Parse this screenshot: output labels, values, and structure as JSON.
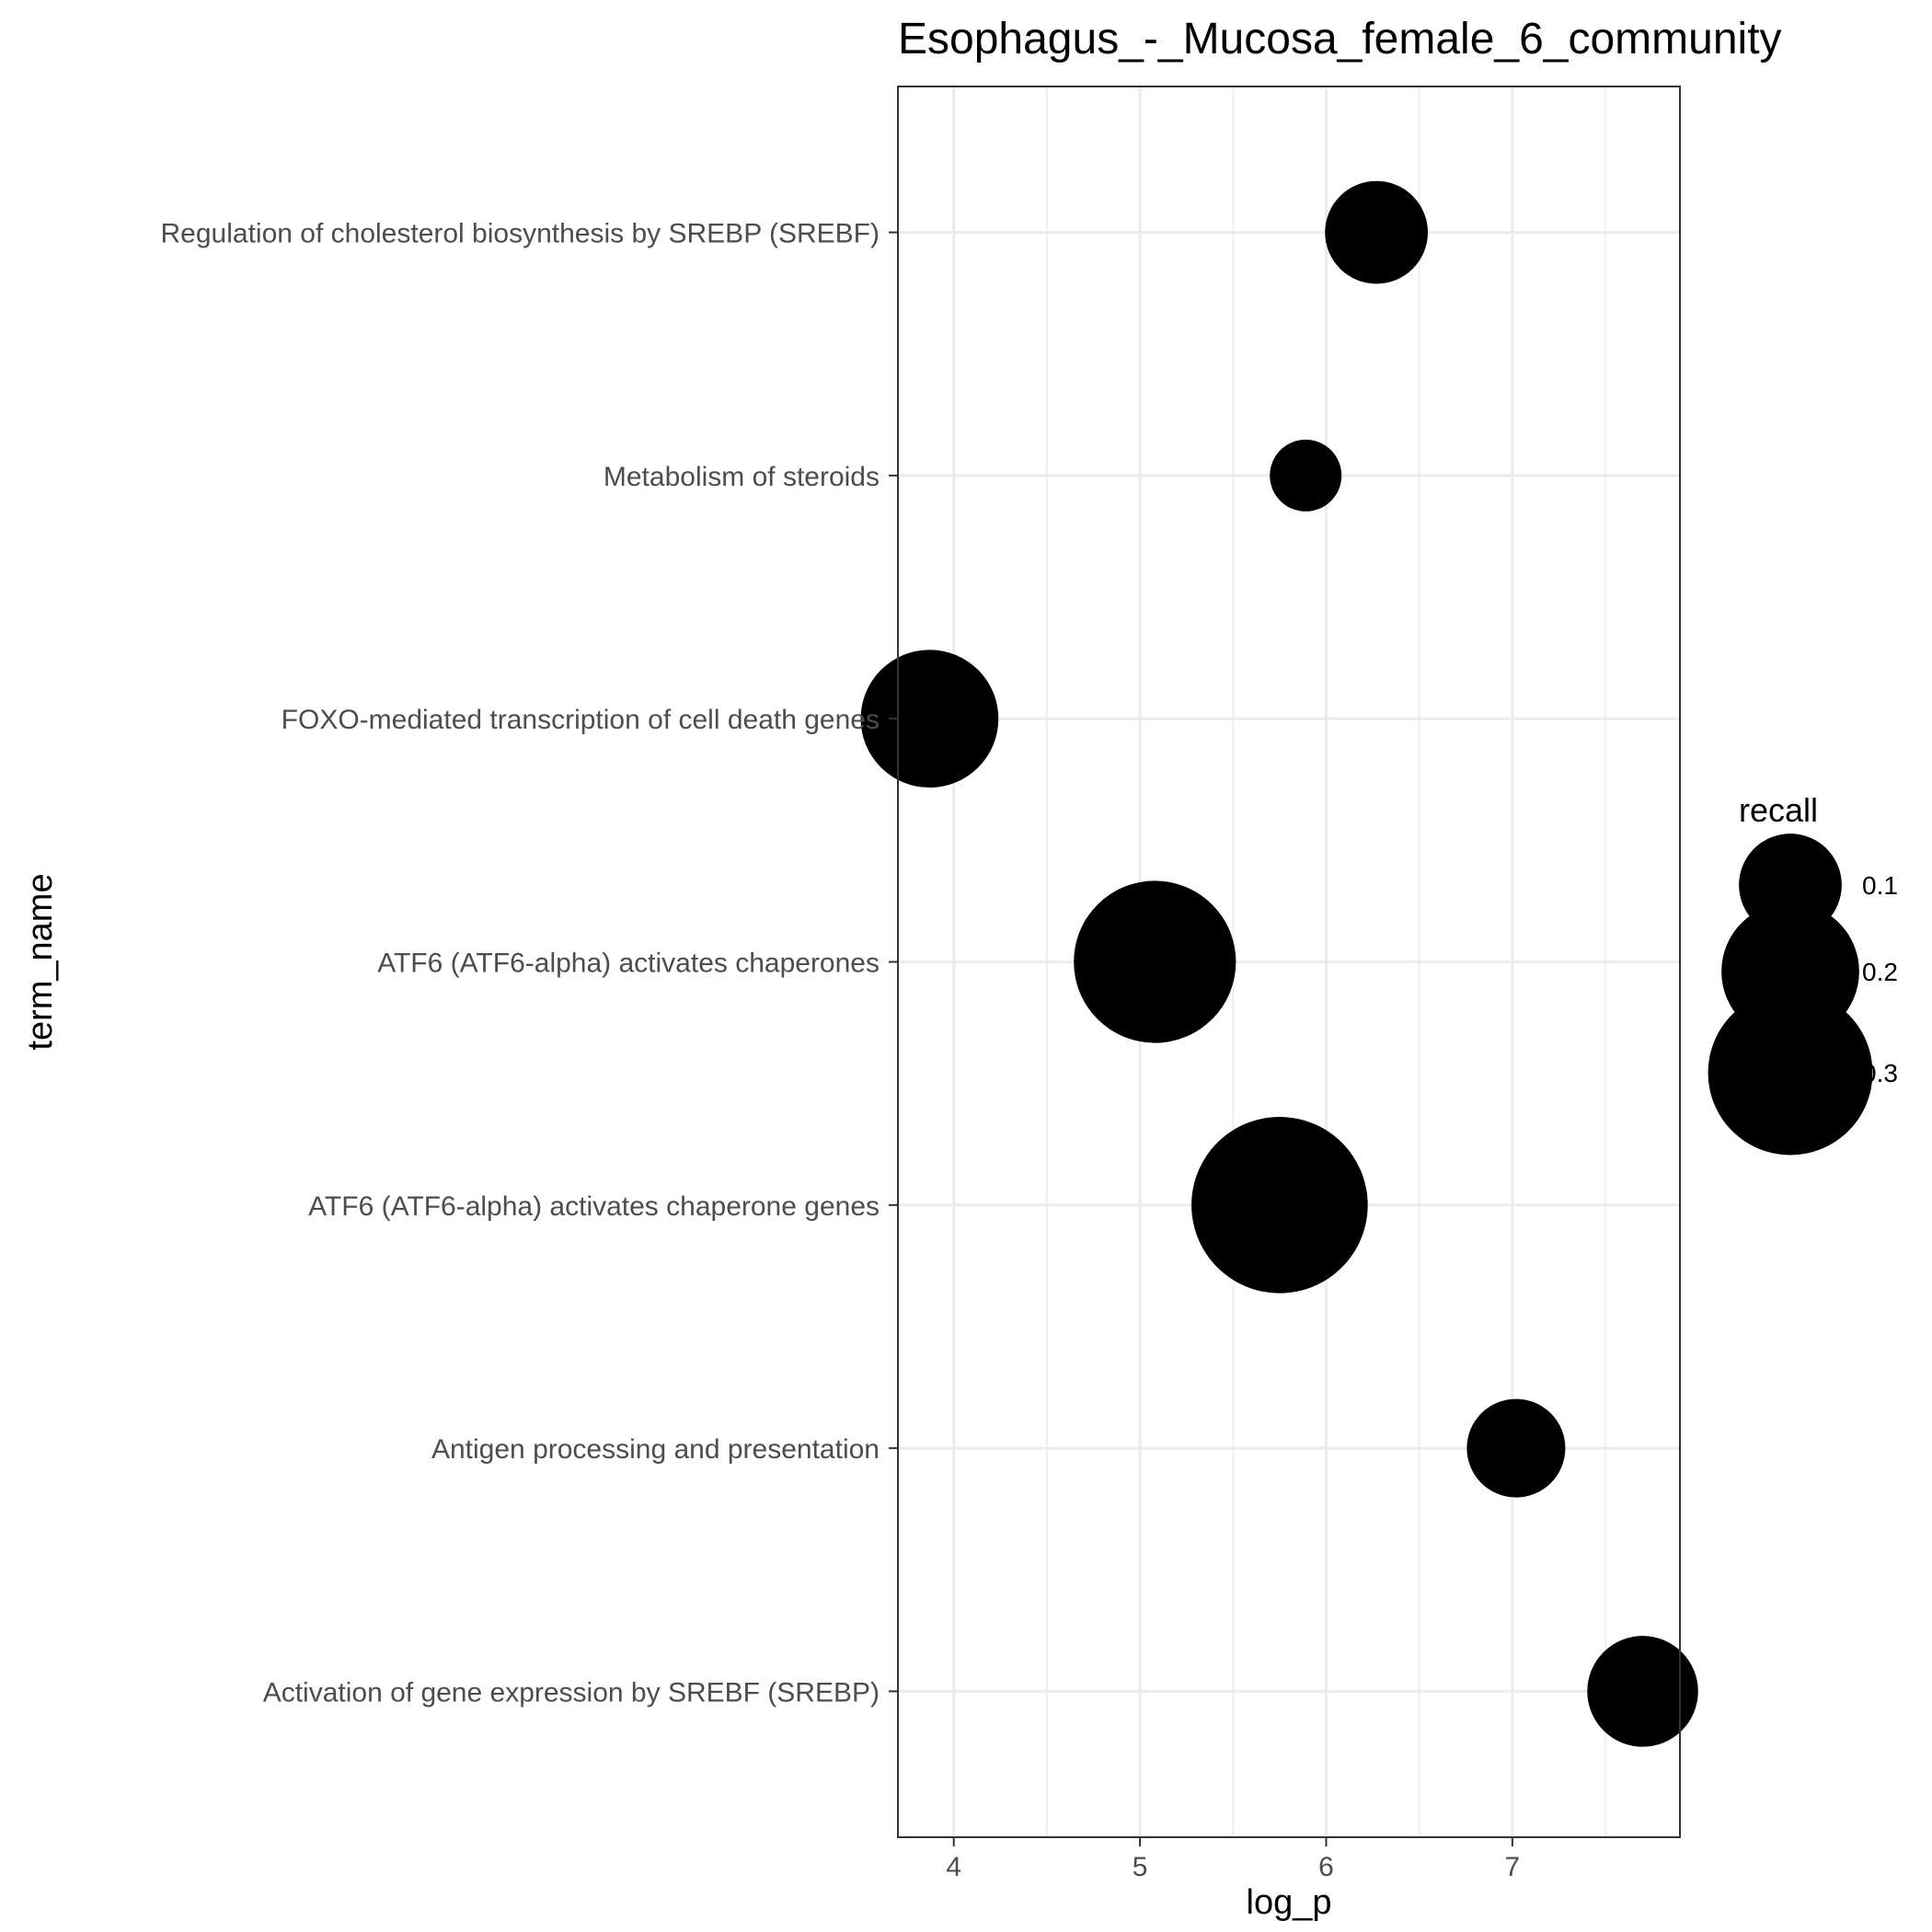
{
  "chart_data": {
    "type": "scatter",
    "title": "Esophagus_-_Mucosa_female_6_community",
    "xlabel": "log_p",
    "ylabel": "term_name",
    "xlim": [
      3.7,
      7.9
    ],
    "x_ticks": [
      4,
      5,
      6,
      7
    ],
    "grid": true,
    "categories": [
      "Regulation of cholesterol biosynthesis by SREBP (SREBF)",
      "Metabolism of steroids",
      "FOXO-mediated transcription of cell death genes",
      "ATF6 (ATF6-alpha) activates chaperones",
      "ATF6 (ATF6-alpha) activates chaperone genes",
      "Antigen processing and presentation",
      "Activation of gene expression by SREBF (SREBP)"
    ],
    "points": [
      {
        "term_name": "Regulation of cholesterol biosynthesis by SREBP (SREBF)",
        "log_p": 6.27,
        "recall": 0.1
      },
      {
        "term_name": "Metabolism of steroids",
        "log_p": 5.89,
        "recall": 0.04
      },
      {
        "term_name": "FOXO-mediated transcription of cell death genes",
        "log_p": 3.87,
        "recall": 0.2
      },
      {
        "term_name": "ATF6 (ATF6-alpha) activates chaperones",
        "log_p": 5.08,
        "recall": 0.29
      },
      {
        "term_name": "ATF6 (ATF6-alpha) activates chaperone genes",
        "log_p": 5.75,
        "recall": 0.35
      },
      {
        "term_name": "Antigen processing and presentation",
        "log_p": 7.02,
        "recall": 0.09
      },
      {
        "term_name": "Activation of gene expression by SREBF (SREBP)",
        "log_p": 7.7,
        "recall": 0.12
      }
    ],
    "legend": {
      "title": "recall",
      "placement": "right",
      "entries": [
        {
          "label": "0.1",
          "value": 0.1
        },
        {
          "label": "0.2",
          "value": 0.2
        },
        {
          "label": "0.3",
          "value": 0.3
        }
      ]
    },
    "point_color": "#000000",
    "grid_color": "#ebebeb",
    "panel_border_color": "#333333"
  }
}
